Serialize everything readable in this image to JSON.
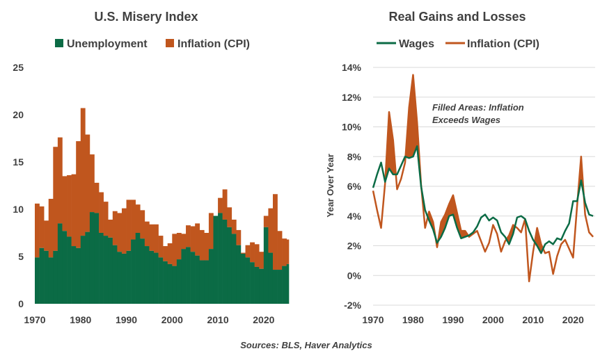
{
  "source": "Sources: BLS, Haver Analytics",
  "chart_data": [
    {
      "type": "area",
      "title": "U.S. Misery Index",
      "xlabel": "",
      "ylabel": "",
      "stacked": true,
      "xlim": [
        1970,
        2025.5
      ],
      "ylim": [
        0,
        25
      ],
      "x_ticks": [
        "1970",
        "1980",
        "1990",
        "2000",
        "2010",
        "2020"
      ],
      "y_ticks": [
        "0",
        "5",
        "10",
        "15",
        "20",
        "25"
      ],
      "legend_position": "top",
      "grid": false,
      "colors": {
        "unemployment": "#0b6b45",
        "inflation": "#c0561e"
      },
      "x": [
        1970,
        1971,
        1972,
        1973,
        1974,
        1975,
        1976,
        1977,
        1978,
        1979,
        1980,
        1981,
        1982,
        1983,
        1984,
        1985,
        1986,
        1987,
        1988,
        1989,
        1990,
        1991,
        1992,
        1993,
        1994,
        1995,
        1996,
        1997,
        1998,
        1999,
        2000,
        2001,
        2002,
        2003,
        2004,
        2005,
        2006,
        2007,
        2008,
        2009,
        2010,
        2011,
        2012,
        2013,
        2014,
        2015,
        2016,
        2017,
        2018,
        2019,
        2020,
        2021,
        2022,
        2023,
        2024,
        2025
      ],
      "series": [
        {
          "name": "Unemployment",
          "values": [
            4.9,
            5.9,
            5.6,
            4.9,
            5.6,
            8.5,
            7.7,
            7.1,
            6.1,
            5.9,
            7.2,
            7.6,
            9.7,
            9.6,
            7.5,
            7.2,
            7.0,
            6.2,
            5.5,
            5.3,
            5.6,
            6.8,
            7.5,
            6.9,
            6.1,
            5.6,
            5.4,
            4.9,
            4.5,
            4.2,
            4.0,
            4.7,
            5.8,
            6.0,
            5.5,
            5.1,
            4.6,
            4.6,
            5.8,
            9.3,
            9.6,
            8.9,
            8.1,
            7.4,
            6.2,
            5.3,
            4.9,
            4.4,
            3.9,
            3.7,
            8.1,
            5.4,
            3.6,
            3.6,
            4.0,
            4.2
          ]
        },
        {
          "name": "Inflation (CPI)",
          "values": [
            5.7,
            4.4,
            3.2,
            6.2,
            11.0,
            9.1,
            5.8,
            6.5,
            7.6,
            11.3,
            13.5,
            10.3,
            6.1,
            3.2,
            4.3,
            3.6,
            1.9,
            3.6,
            4.1,
            4.8,
            5.4,
            4.2,
            3.0,
            3.0,
            2.6,
            2.8,
            3.0,
            2.3,
            1.6,
            2.2,
            3.4,
            2.8,
            1.6,
            2.3,
            2.7,
            3.4,
            3.2,
            2.9,
            3.8,
            -0.4,
            1.6,
            3.2,
            2.1,
            1.5,
            1.6,
            0.1,
            1.3,
            2.1,
            2.4,
            1.8,
            1.2,
            4.7,
            8.0,
            4.1,
            2.9,
            2.6
          ]
        }
      ]
    },
    {
      "type": "line",
      "title": "Real Gains and Losses",
      "xlabel": "",
      "ylabel": "Year Over Year",
      "xlim": [
        1970,
        2025.5
      ],
      "ylim": [
        -2,
        14
      ],
      "x_ticks": [
        "1970",
        "1980",
        "1990",
        "2000",
        "2010",
        "2020"
      ],
      "y_ticks": [
        "-2%",
        "0%",
        "2%",
        "4%",
        "6%",
        "8%",
        "10%",
        "12%",
        "14%"
      ],
      "legend_position": "top",
      "grid": true,
      "annotation": [
        "Filled Areas: Inflation",
        "Exceeds Wages"
      ],
      "colors": {
        "wages": "#0b6b45",
        "inflation": "#c0561e",
        "fill": "#c0561e"
      },
      "x": [
        1970,
        1971,
        1972,
        1973,
        1974,
        1975,
        1976,
        1977,
        1978,
        1979,
        1980,
        1981,
        1982,
        1983,
        1984,
        1985,
        1986,
        1987,
        1988,
        1989,
        1990,
        1991,
        1992,
        1993,
        1994,
        1995,
        1996,
        1997,
        1998,
        1999,
        2000,
        2001,
        2002,
        2003,
        2004,
        2005,
        2006,
        2007,
        2008,
        2009,
        2010,
        2011,
        2012,
        2013,
        2014,
        2015,
        2016,
        2017,
        2018,
        2019,
        2020,
        2021,
        2022,
        2023,
        2024,
        2025
      ],
      "series": [
        {
          "name": "Wages",
          "values": [
            5.9,
            6.8,
            7.6,
            6.3,
            7.2,
            6.8,
            6.8,
            7.4,
            8.0,
            7.9,
            8.0,
            8.7,
            6.0,
            4.4,
            3.7,
            3.1,
            2.2,
            2.6,
            3.2,
            4.0,
            4.1,
            3.2,
            2.5,
            2.6,
            2.7,
            2.9,
            3.3,
            3.9,
            4.1,
            3.7,
            3.9,
            3.7,
            2.9,
            2.6,
            2.1,
            2.8,
            3.9,
            4.0,
            3.8,
            3.0,
            2.4,
            2.0,
            1.5,
            2.1,
            2.3,
            2.1,
            2.5,
            2.4,
            3.0,
            3.5,
            5.0,
            5.0,
            6.4,
            4.9,
            4.1,
            4.0
          ]
        },
        {
          "name": "Inflation (CPI)",
          "values": [
            5.7,
            4.4,
            3.2,
            6.2,
            11.0,
            9.1,
            5.8,
            6.5,
            7.6,
            11.3,
            13.5,
            10.3,
            6.1,
            3.2,
            4.3,
            3.6,
            1.9,
            3.6,
            4.1,
            4.8,
            5.4,
            4.2,
            3.0,
            3.0,
            2.6,
            2.8,
            3.0,
            2.3,
            1.6,
            2.2,
            3.4,
            2.8,
            1.6,
            2.3,
            2.7,
            3.4,
            3.2,
            2.9,
            3.8,
            -0.4,
            1.6,
            3.2,
            2.1,
            1.5,
            1.6,
            0.1,
            1.3,
            2.1,
            2.4,
            1.8,
            1.2,
            4.7,
            8.0,
            4.1,
            2.9,
            2.6
          ]
        }
      ]
    }
  ]
}
